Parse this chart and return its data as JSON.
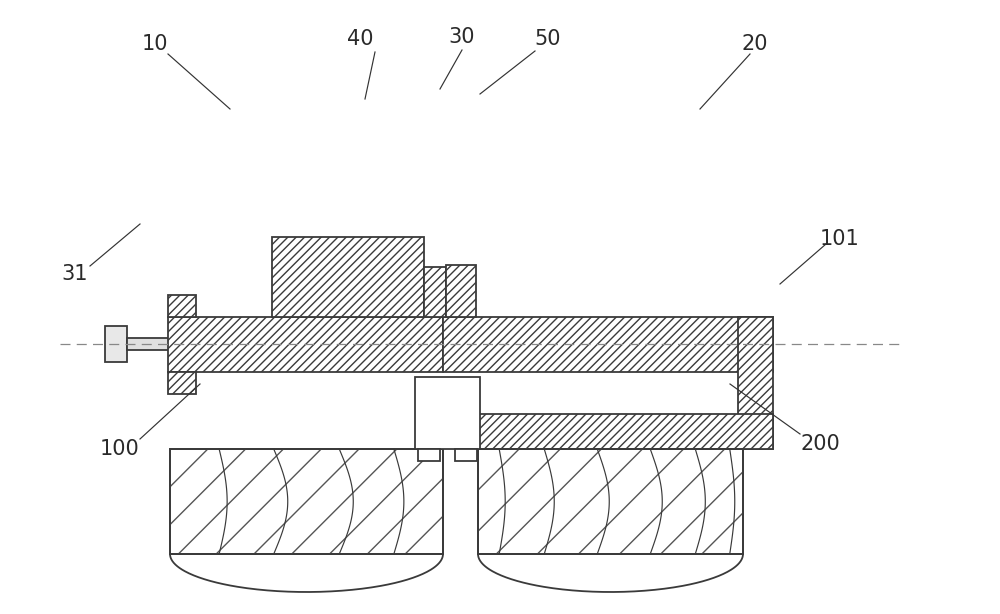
{
  "bg_color": "#ffffff",
  "line_color": "#3a3a3a",
  "label_color": "#2a2a2a",
  "label_fontsize": 15,
  "figsize": [
    10.0,
    6.14
  ],
  "dpi": 100,
  "xlim": [
    0,
    1000
  ],
  "ylim": [
    0,
    614
  ]
}
